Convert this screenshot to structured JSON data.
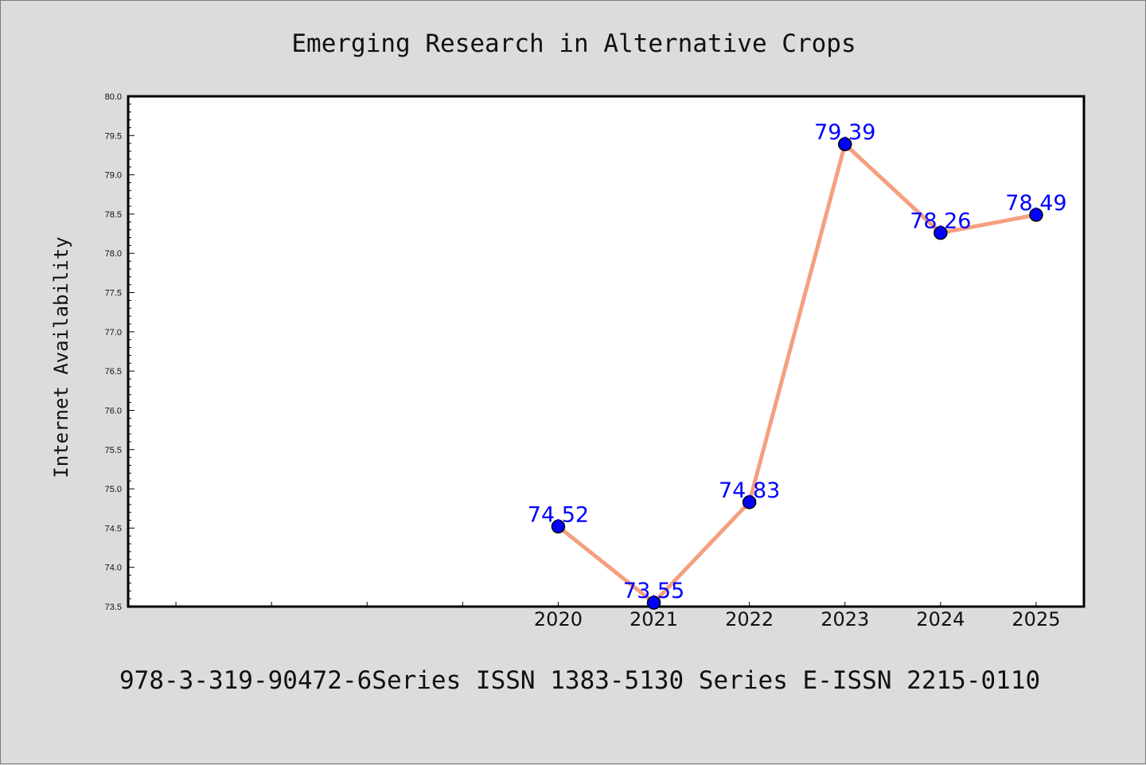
{
  "chart_data": {
    "type": "line",
    "title": "Emerging Research in Alternative Crops",
    "ylabel": "Internet Availability",
    "xlabel": "",
    "footer": "978-3-319-90472-6Series ISSN 1383-5130 Series E-ISSN 2215-0110",
    "x": [
      2020,
      2021,
      2022,
      2023,
      2024,
      2025
    ],
    "values": [
      74.52,
      73.55,
      74.83,
      79.39,
      78.26,
      78.49
    ],
    "data_labels": [
      "74.52",
      "73.55",
      "74.83",
      "79.39",
      "78.26",
      "78.49"
    ],
    "xticks": [
      "2020",
      "2021",
      "2022",
      "2023",
      "2024",
      "2025"
    ],
    "yticks": [
      "73.5",
      "74.0",
      "74.5",
      "75.0",
      "75.5",
      "76.0",
      "76.5",
      "77.0",
      "77.5",
      "78.0",
      "78.5",
      "79.0",
      "79.5",
      "80.0"
    ],
    "xlim": [
      2015.5,
      2025.5
    ],
    "ylim": [
      73.5,
      80.0
    ],
    "grid": false,
    "legend": "none",
    "colors": {
      "background": "#dcdcdc",
      "plot_background": "#ffffff",
      "line": "#f4a07f",
      "marker": "#0000ff",
      "data_label": "#0000ff",
      "axis": "#000000"
    }
  }
}
